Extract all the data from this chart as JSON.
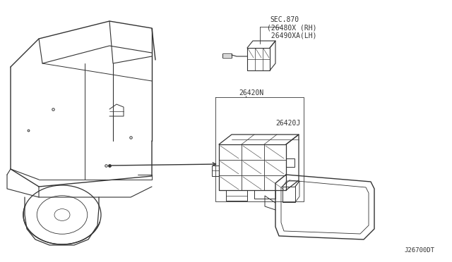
{
  "bg_color": "#ffffff",
  "fig_width": 6.4,
  "fig_height": 3.72,
  "dpi": 100,
  "line_color": "#333333",
  "text_color": "#333333",
  "diagram_id": "J26700DT",
  "labels": {
    "sec870": "SEC.870",
    "part1_rh": "(26480X (RH)",
    "part1_lh": " 26490XA(LH)",
    "part2_n": "26420N",
    "part2_j": "26420J"
  }
}
